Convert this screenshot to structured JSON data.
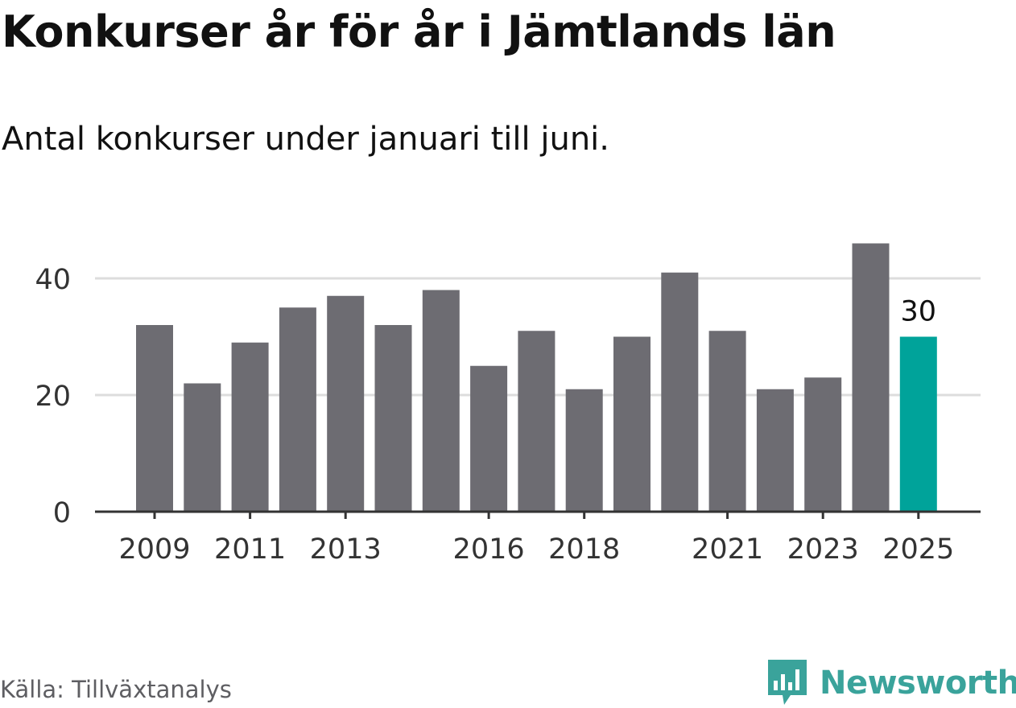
{
  "title": "Konkurser år för år i Jämtlands län",
  "subtitle": "Antal konkurser under januari till juni.",
  "source": "Källa: Tillväxtanalys",
  "brand": {
    "name": "Newsworthy",
    "logo_icon": "newsworthy-chart-bubble-icon",
    "color": "#3aa39b"
  },
  "colors": {
    "bar": "#6d6c72",
    "highlight": "#00a39a",
    "grid": "#dddddd",
    "axis": "#333333"
  },
  "chart_data": {
    "type": "bar",
    "title": "Konkurser år för år i Jämtlands län",
    "subtitle": "Antal konkurser under januari till juni.",
    "categories": [
      "2009",
      "2010",
      "2011",
      "2012",
      "2013",
      "2014",
      "2015",
      "2016",
      "2017",
      "2018",
      "2019",
      "2020",
      "2021",
      "2022",
      "2023",
      "2024",
      "2025"
    ],
    "values": [
      32,
      22,
      29,
      35,
      37,
      32,
      38,
      25,
      31,
      21,
      30,
      41,
      31,
      21,
      23,
      46,
      30
    ],
    "x_tick_labels": [
      "2009",
      "2011",
      "2013",
      "2016",
      "2018",
      "2021",
      "2023",
      "2025"
    ],
    "y_ticks": [
      0,
      20,
      40
    ],
    "ylim": [
      0,
      49
    ],
    "grid": true,
    "highlight": {
      "category": "2025",
      "label": "30"
    },
    "xlabel": "",
    "ylabel": ""
  }
}
